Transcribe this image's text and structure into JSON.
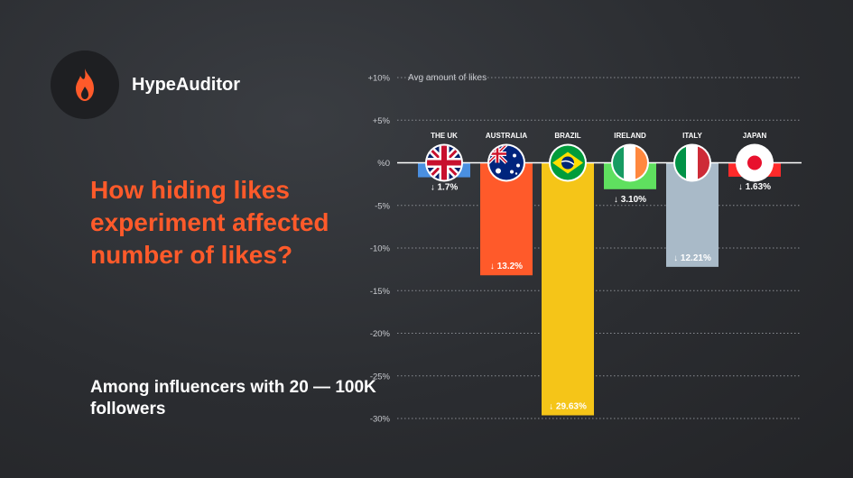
{
  "brand": {
    "name": "HypeAuditor",
    "accent": "#ff5a2a"
  },
  "headline": "How hiding likes experiment affected number of likes?",
  "subheadline": "Among influencers with 20 — 100K followers",
  "chart_data": {
    "type": "bar",
    "title": "",
    "ylabel": "Avg amount of likes",
    "xlabel": "",
    "ylim": [
      -30,
      10
    ],
    "ytick_values": [
      10,
      5,
      0,
      -5,
      -10,
      -15,
      -20,
      -25,
      -30
    ],
    "ytick_labels": [
      "+10%",
      "+5%",
      "%0",
      "-5%",
      "-10%",
      "-15%",
      "-20%",
      "-25%",
      "-30%"
    ],
    "grid": "dotted horizontal",
    "categories": [
      "THE UK",
      "AUSTRALIA",
      "BRAZIL",
      "IRELAND",
      "ITALY",
      "JAPAN"
    ],
    "values": [
      -1.7,
      -13.2,
      -29.63,
      -3.1,
      -12.21,
      -1.63
    ],
    "data_labels": [
      "↓ 1.7%",
      "↓ 13.2%",
      "↓ 29.63%",
      "↓ 3.10%",
      "↓ 12.21%",
      "↓ 1.63%"
    ],
    "colors": [
      "#4a8fe0",
      "#ff5a2a",
      "#f5c518",
      "#5fe05f",
      "#a9bac8",
      "#ff2a2a"
    ],
    "flag_icons": [
      "uk-flag-icon",
      "australia-flag-icon",
      "brazil-flag-icon",
      "ireland-flag-icon",
      "italy-flag-icon",
      "japan-flag-icon"
    ]
  }
}
